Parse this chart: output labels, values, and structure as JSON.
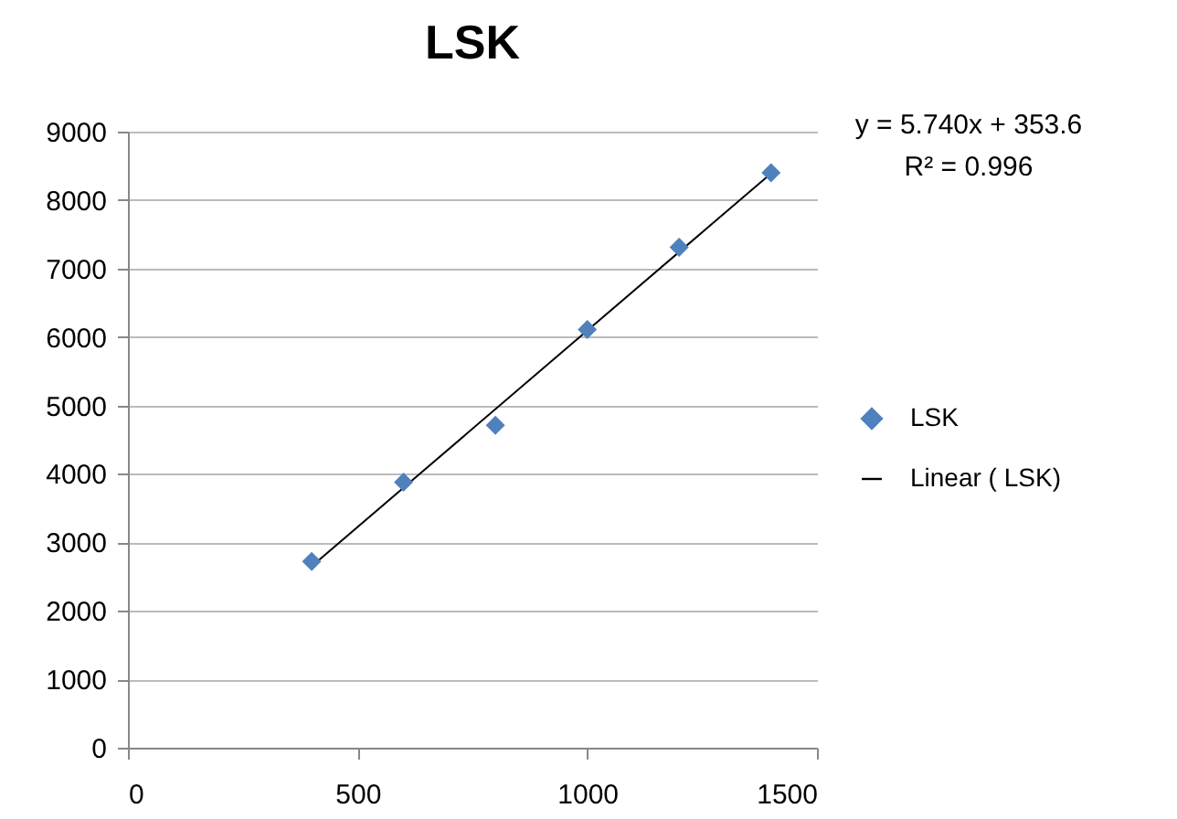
{
  "chart_data": {
    "type": "scatter",
    "title": "LSK",
    "annotations": [
      "y = 5.740x + 353.6",
      "R² = 0.996"
    ],
    "xlim": [
      0,
      1500
    ],
    "xticks": [
      0,
      500,
      1000,
      1500
    ],
    "ylim": [
      0,
      9000
    ],
    "yticks": [
      0,
      1000,
      2000,
      3000,
      4000,
      5000,
      6000,
      7000,
      8000,
      9000
    ],
    "grid": "y",
    "legend": "right",
    "series": [
      {
        "name": "LSK",
        "marker": "diamond",
        "color": "#4f81bd",
        "x": [
          400,
          600,
          800,
          1000,
          1200,
          1400
        ],
        "values": [
          2720,
          3880,
          4710,
          6110,
          7310,
          8400
        ]
      },
      {
        "name": "Linear (  LSK)",
        "type": "line",
        "marker": "none",
        "color": "#000000",
        "x": [
          400,
          1400
        ],
        "values": [
          2650,
          8390
        ]
      }
    ]
  }
}
